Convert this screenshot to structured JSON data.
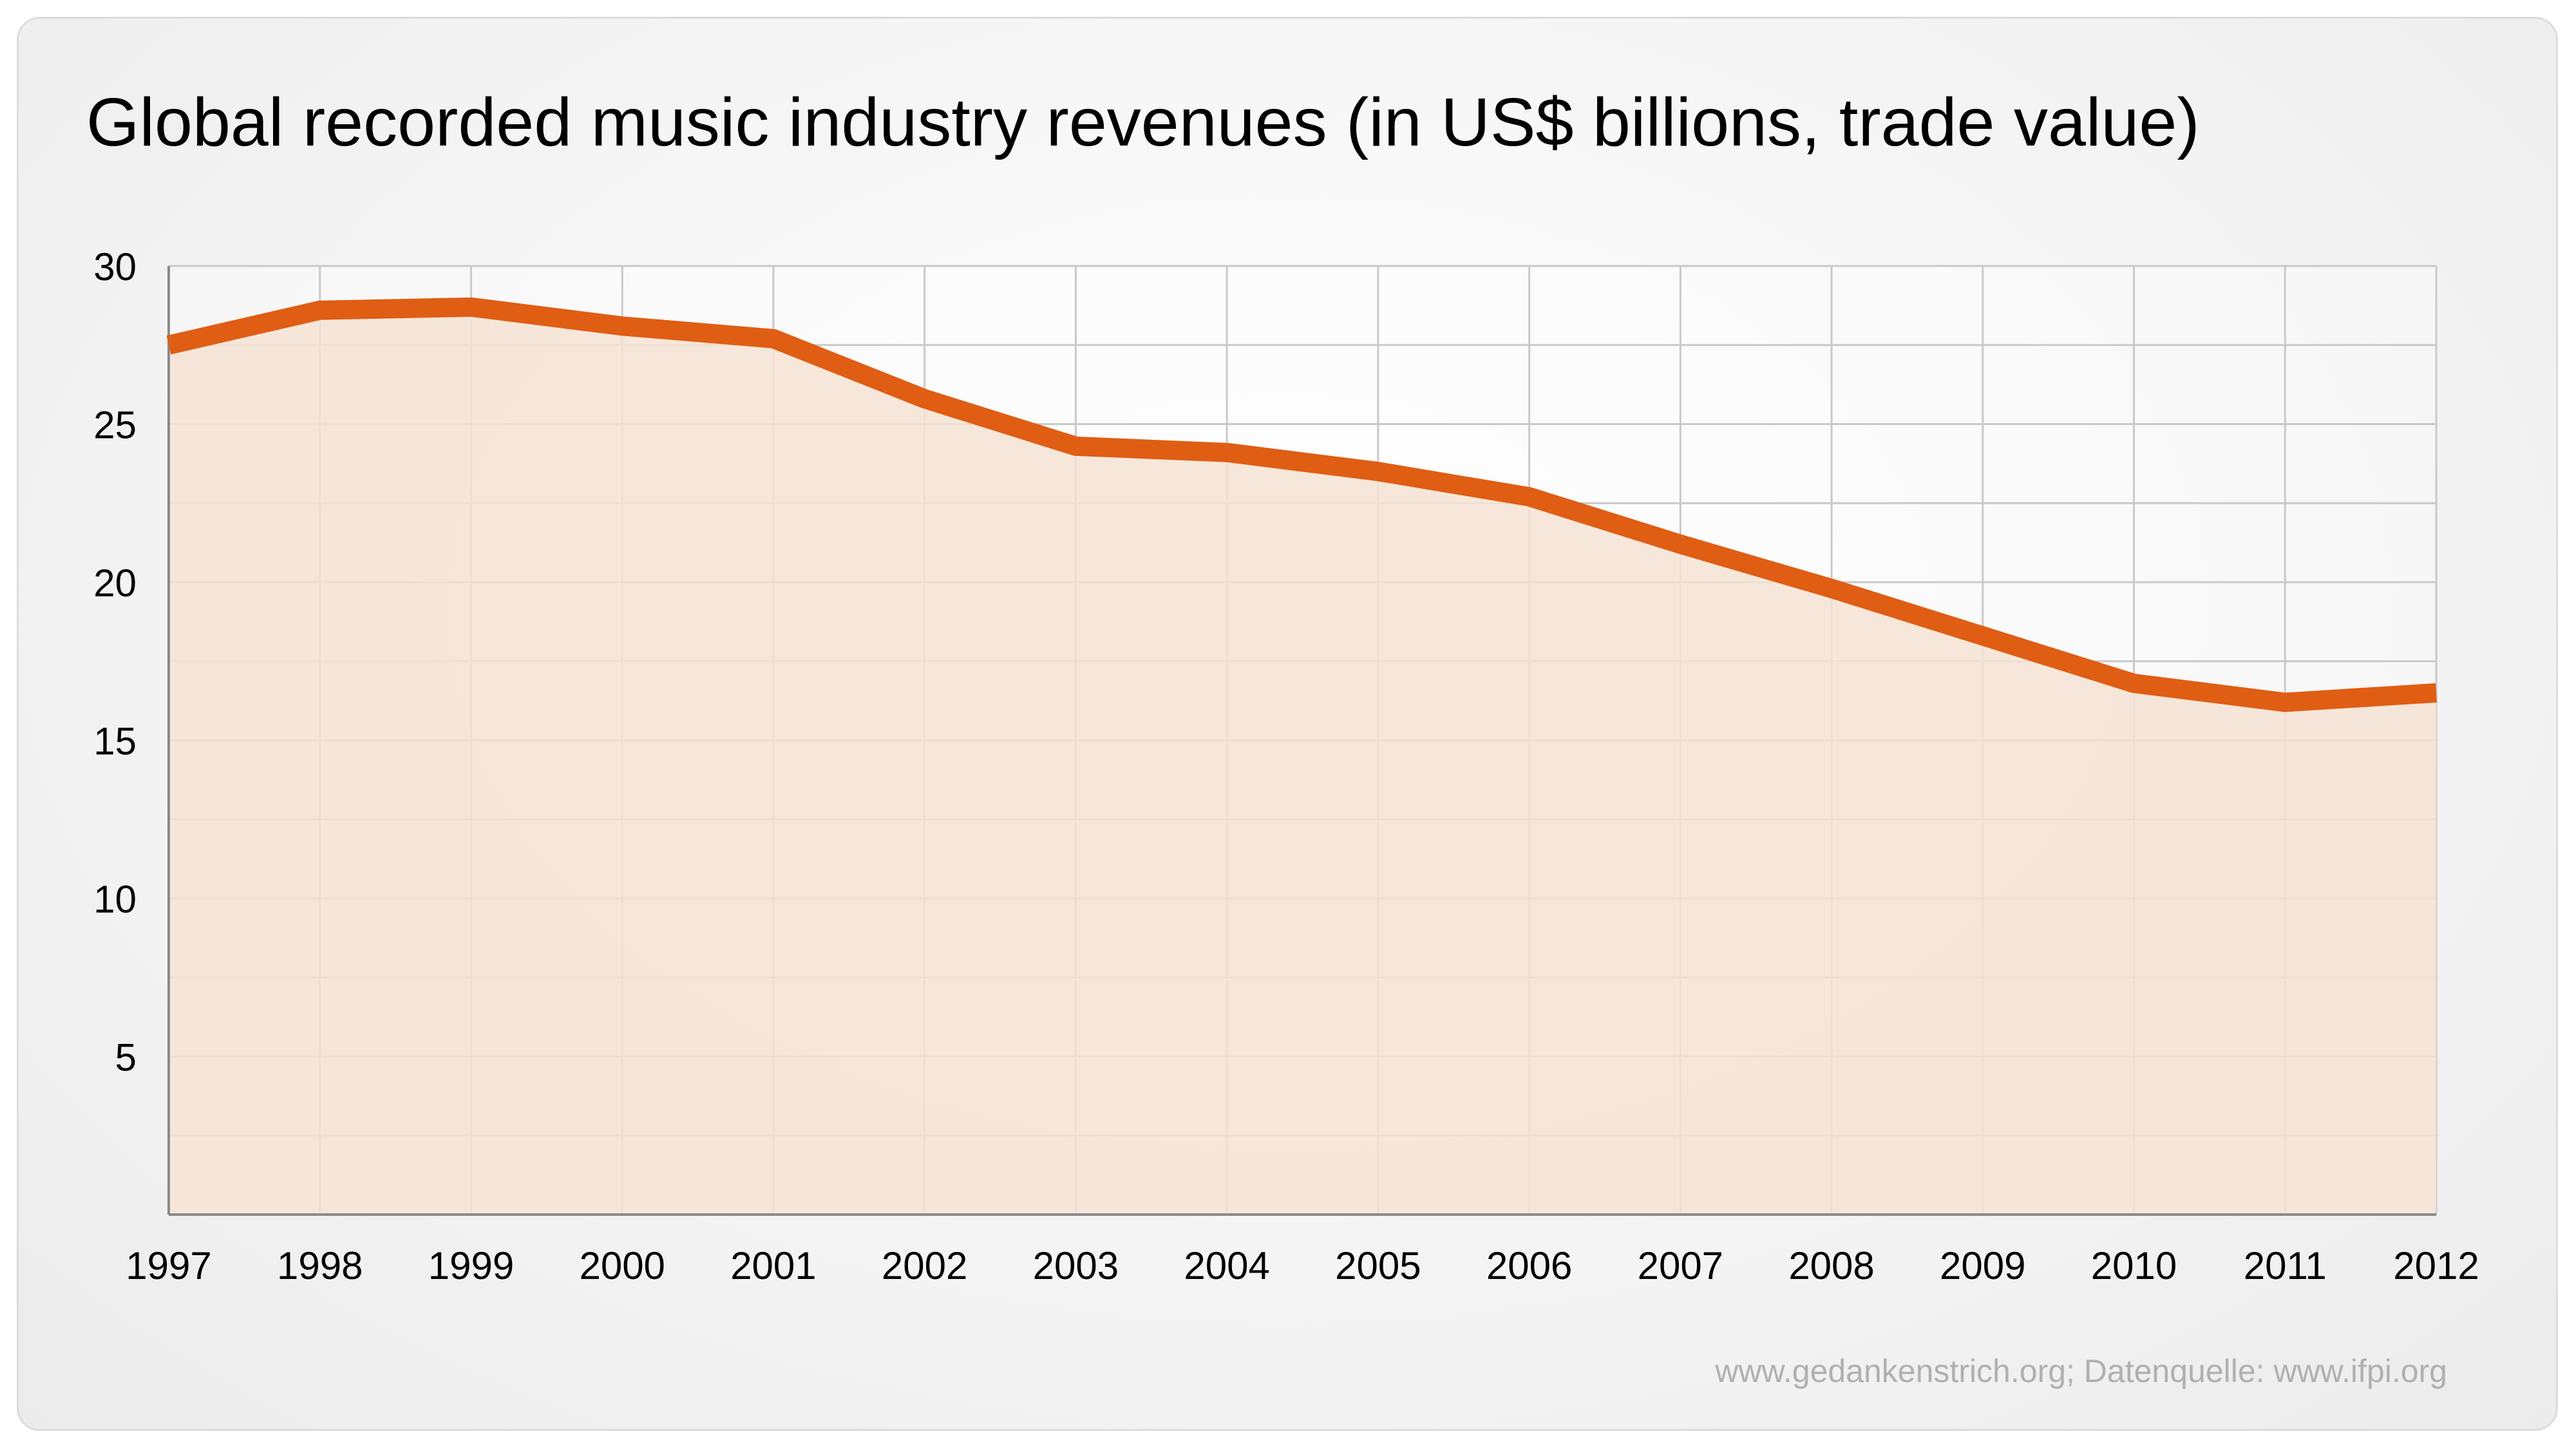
{
  "chart_data": {
    "type": "area",
    "title": "Global recorded music industry revenues (in US$ billions, trade value)",
    "xlabel": "",
    "ylabel": "",
    "x": [
      "1997",
      "1998",
      "1999",
      "2000",
      "2001",
      "2002",
      "2003",
      "2004",
      "2005",
      "2006",
      "2007",
      "2008",
      "2009",
      "2010",
      "2011",
      "2012"
    ],
    "series": [
      {
        "values": [
          27.5,
          28.6,
          28.7,
          28.1,
          27.7,
          25.8,
          24.3,
          24.1,
          23.5,
          22.7,
          21.2,
          19.8,
          18.3,
          16.8,
          16.2,
          16.5
        ]
      }
    ],
    "ylim": [
      0,
      30
    ],
    "yticks": [
      5,
      10,
      15,
      20,
      25,
      30
    ],
    "grid": true,
    "legend": "none",
    "colors": {
      "line": "#e05d14",
      "fill": "#f6e3d3",
      "grid": "#c9c9c9",
      "axis": "#8a8a8a"
    }
  },
  "source": "www.gedankenstrich.org; Datenquelle: www.ifpi.org"
}
